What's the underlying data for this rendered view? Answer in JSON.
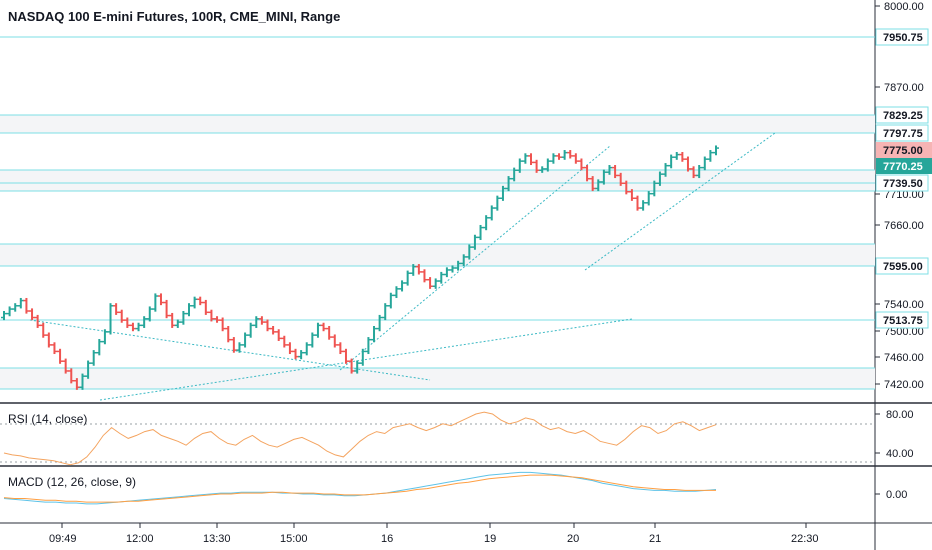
{
  "header": {
    "title": "NASDAQ 100 E-mini Futures, 100R, CME_MINI, Range"
  },
  "colors": {
    "up": "#26a69a",
    "down": "#ef5350",
    "level_line": "#7ddfe6",
    "trend_line": "#3bb9c4",
    "rsi": "#f4a460",
    "macd": "#5ec3e8",
    "signal": "#ff9f43",
    "price_tag_red": "#f6b4b4",
    "price_tag_green": "#26a69a"
  },
  "price_axis": {
    "ticks": [
      "8000.00",
      "7870.00",
      "7710.00",
      "7660.00",
      "7540.00",
      "7500.00",
      "7460.00",
      "7420.00"
    ],
    "levels": [
      "7950.75",
      "7829.25",
      "7797.75",
      "7739.50",
      "7595.00",
      "7513.75"
    ],
    "last_prices": [
      "7775.00",
      "7770.25"
    ]
  },
  "rsi_pane": {
    "label": "RSI (14, close)",
    "ticks": [
      "80.00",
      "40.00"
    ]
  },
  "macd_pane": {
    "label": "MACD (12, 26, close, 9)",
    "ticks": [
      "0.00"
    ]
  },
  "time_axis": {
    "labels": [
      "09:49",
      "12:00",
      "13:30",
      "15:00",
      "16",
      "19",
      "20",
      "21",
      "22:30"
    ]
  },
  "chart_data": {
    "type": "line",
    "title": "NASDAQ 100 E-mini Futures, 100R, CME_MINI, Range",
    "price_bars_close": [
      7528,
      7535,
      7540,
      7548,
      7532,
      7522,
      7510,
      7495,
      7480,
      7470,
      7455,
      7440,
      7425,
      7415,
      7432,
      7452,
      7468,
      7485,
      7500,
      7540,
      7530,
      7518,
      7510,
      7505,
      7510,
      7520,
      7535,
      7555,
      7545,
      7525,
      7510,
      7515,
      7528,
      7540,
      7550,
      7545,
      7530,
      7520,
      7518,
      7505,
      7488,
      7472,
      7480,
      7495,
      7510,
      7520,
      7515,
      7505,
      7500,
      7490,
      7480,
      7470,
      7462,
      7468,
      7480,
      7495,
      7510,
      7505,
      7492,
      7480,
      7470,
      7455,
      7440,
      7452,
      7470,
      7488,
      7505,
      7522,
      7540,
      7556,
      7566,
      7575,
      7590,
      7600,
      7592,
      7580,
      7570,
      7578,
      7588,
      7595,
      7598,
      7605,
      7615,
      7630,
      7645,
      7660,
      7675,
      7690,
      7705,
      7720,
      7735,
      7748,
      7762,
      7770,
      7760,
      7748,
      7750,
      7762,
      7770,
      7768,
      7775,
      7770,
      7762,
      7752,
      7735,
      7720,
      7730,
      7745,
      7752,
      7740,
      7728,
      7715,
      7705,
      7690,
      7698,
      7712,
      7728,
      7742,
      7755,
      7768,
      7772,
      7765,
      7750,
      7740,
      7752,
      7765,
      7775,
      7782
    ],
    "rsi_values": [
      40,
      38,
      37,
      35,
      34,
      33,
      32,
      30,
      28,
      30,
      36,
      46,
      58,
      66,
      60,
      55,
      58,
      62,
      64,
      58,
      55,
      52,
      48,
      55,
      60,
      62,
      55,
      50,
      48,
      54,
      58,
      52,
      48,
      46,
      50,
      54,
      56,
      52,
      48,
      42,
      38,
      36,
      44,
      52,
      58,
      62,
      60,
      66,
      68,
      70,
      66,
      63,
      66,
      70,
      68,
      72,
      76,
      80,
      82,
      80,
      74,
      70,
      72,
      76,
      74,
      68,
      64,
      66,
      62,
      60,
      63,
      58,
      52,
      50,
      48,
      54,
      62,
      68,
      66,
      60,
      63,
      70,
      72,
      68,
      63,
      66,
      69
    ],
    "rsi_ylim": [
      30,
      90
    ],
    "macd_values": [
      -5,
      -6,
      -7,
      -8,
      -9,
      -9,
      -10,
      -10,
      -11,
      -11,
      -10,
      -9,
      -8,
      -7,
      -6,
      -5,
      -4,
      -3,
      -2,
      -1,
      0,
      1,
      1,
      2,
      2,
      2,
      2,
      1,
      1,
      0,
      0,
      -1,
      -1,
      -2,
      -2,
      -1,
      0,
      1,
      3,
      5,
      7,
      9,
      11,
      13,
      15,
      17,
      19,
      21,
      22,
      23,
      24,
      24,
      23,
      22,
      21,
      19,
      17,
      15,
      12,
      10,
      8,
      6,
      5,
      4,
      4,
      3,
      3,
      3,
      4,
      5
    ],
    "signal_values": [
      -4,
      -5,
      -5,
      -6,
      -7,
      -7,
      -8,
      -8,
      -9,
      -9,
      -9,
      -9,
      -8,
      -8,
      -7,
      -6,
      -5,
      -4,
      -3,
      -2,
      -1,
      0,
      0,
      1,
      1,
      1,
      2,
      2,
      1,
      1,
      1,
      0,
      0,
      -1,
      -1,
      -1,
      0,
      1,
      2,
      3,
      5,
      6,
      8,
      10,
      12,
      13,
      15,
      17,
      18,
      19,
      20,
      21,
      21,
      21,
      20,
      19,
      18,
      16,
      14,
      12,
      10,
      8,
      7,
      6,
      5,
      5,
      4,
      4,
      4,
      4
    ],
    "macd_ylim": [
      -30,
      40
    ],
    "price_ylim": [
      7395,
      8010
    ]
  }
}
